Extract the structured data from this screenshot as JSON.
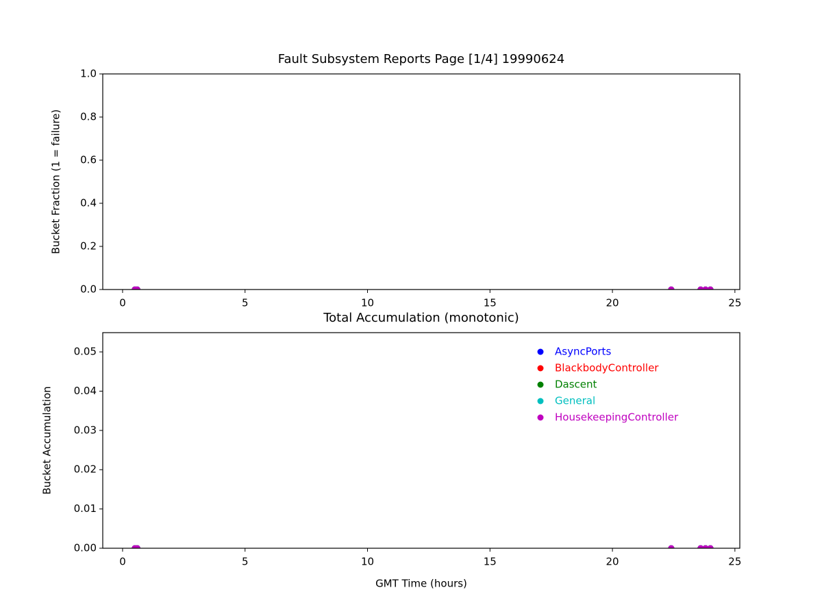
{
  "chart_data": [
    {
      "type": "scatter",
      "title": "Fault Subsystem Reports Page [1/4] 19990624",
      "y_label": "Bucket Fraction (1 = failure)",
      "x": [
        0.5,
        0.6,
        22.4,
        23.6,
        23.8,
        24.0
      ],
      "series": [
        {
          "color": "#0000ff",
          "values": [
            0,
            0,
            0,
            0,
            0,
            0
          ]
        },
        {
          "color": "#ff0000",
          "values": [
            0,
            0,
            0,
            0,
            0,
            0
          ]
        },
        {
          "color": "#008000",
          "values": [
            0,
            0,
            0,
            0,
            0,
            0
          ]
        },
        {
          "color": "#00bfbf",
          "values": [
            0,
            0,
            0,
            0,
            0,
            0
          ]
        },
        {
          "color": "#bf00bf",
          "values": [
            0,
            0,
            0,
            0,
            0,
            0
          ]
        }
      ],
      "xlim": [
        -0.81,
        25.2
      ],
      "xticks": [
        0,
        5,
        10,
        15,
        20,
        25
      ],
      "ylim": [
        0,
        1
      ],
      "yticks": [
        {
          "value": 0,
          "label": "0.0"
        },
        0.2,
        0.4,
        0.6,
        0.8,
        {
          "value": 1,
          "label": "1.0"
        }
      ]
    },
    {
      "type": "scatter",
      "title": "Total Accumulation (monotonic)",
      "x_label": "GMT Time (hours)",
      "y_label": "Bucket Accumulation",
      "x": [
        0.5,
        0.6,
        22.4,
        23.6,
        23.8,
        24.0
      ],
      "series": [
        {
          "name": "AsyncPorts",
          "color": "#0000ff",
          "values": [
            0,
            0,
            0,
            0,
            0,
            0
          ]
        },
        {
          "name": "BlackbodyController",
          "color": "#ff0000",
          "values": [
            0,
            0,
            0,
            0,
            0,
            0
          ]
        },
        {
          "name": "Dascent",
          "color": "#008000",
          "values": [
            0,
            0,
            0,
            0,
            0,
            0
          ]
        },
        {
          "name": "General",
          "color": "#00bfbf",
          "values": [
            0,
            0,
            0,
            0,
            0,
            0
          ]
        },
        {
          "name": "HousekeepingController",
          "color": "#bf00bf",
          "values": [
            0,
            0,
            0,
            0,
            0,
            0
          ]
        }
      ],
      "legend": "upper right",
      "xlim": [
        -0.81,
        25.2
      ],
      "xticks": [
        0,
        5,
        10,
        15,
        20,
        25
      ],
      "ylim": [
        0,
        0.0549
      ],
      "yticks": [
        {
          "value": 0,
          "label": "0.00"
        },
        0.01,
        0.02,
        0.03,
        0.04,
        0.05
      ]
    }
  ]
}
